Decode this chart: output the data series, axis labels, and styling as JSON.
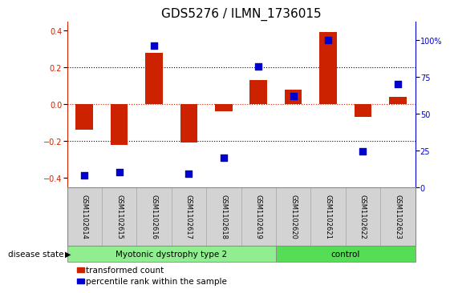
{
  "title": "GDS5276 / ILMN_1736015",
  "samples": [
    "GSM1102614",
    "GSM1102615",
    "GSM1102616",
    "GSM1102617",
    "GSM1102618",
    "GSM1102619",
    "GSM1102620",
    "GSM1102621",
    "GSM1102622",
    "GSM1102623"
  ],
  "transformed_count": [
    -0.14,
    -0.22,
    0.28,
    -0.21,
    -0.04,
    0.13,
    0.08,
    0.39,
    -0.07,
    0.04
  ],
  "percentile_rank": [
    8,
    10,
    96,
    9,
    20,
    82,
    62,
    100,
    24,
    70
  ],
  "bar_color": "#cc2200",
  "dot_color": "#0000cc",
  "ylim_left": [
    -0.45,
    0.45
  ],
  "ylim_right": [
    0,
    112.5
  ],
  "yticks_left": [
    -0.4,
    -0.2,
    0.0,
    0.2,
    0.4
  ],
  "yticks_right": [
    0,
    25,
    50,
    75,
    100
  ],
  "ytick_labels_right": [
    "0",
    "25",
    "50",
    "75",
    "100%"
  ],
  "disease_groups": [
    {
      "label": "Myotonic dystrophy type 2",
      "indices": [
        0,
        1,
        2,
        3,
        4,
        5
      ],
      "color": "#90ee90"
    },
    {
      "label": "control",
      "indices": [
        6,
        7,
        8,
        9
      ],
      "color": "#55dd55"
    }
  ],
  "disease_state_label": "disease state",
  "legend_items": [
    {
      "label": "transformed count",
      "color": "#cc2200"
    },
    {
      "label": "percentile rank within the sample",
      "color": "#0000cc"
    }
  ],
  "hline_zero_color": "#dd2200",
  "hline_dotted_color": "#000000",
  "bar_width": 0.5,
  "dot_size": 28,
  "tick_label_font_size": 7,
  "title_font_size": 11,
  "label_font_size": 7.5,
  "sample_label_fontsize": 6,
  "group_label_fontsize": 7.5
}
